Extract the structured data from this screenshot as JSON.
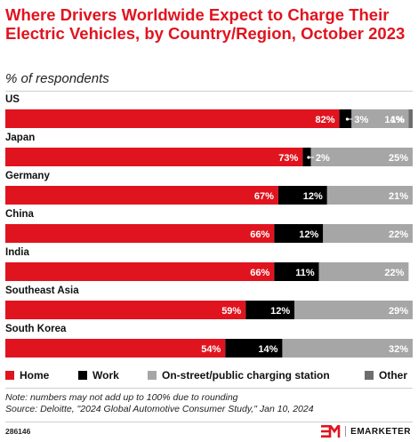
{
  "title": "Where Drivers Worldwide Expect to Charge Their Electric Vehicles, by Country/Region, October 2023",
  "subtitle": "% of respondents",
  "colors": {
    "home": "#e0141f",
    "work": "#000000",
    "public": "#a6a6a6",
    "other": "#6d6d6d",
    "title": "#e0141f"
  },
  "chart_data": {
    "type": "bar",
    "orientation": "horizontal",
    "stacked": true,
    "categories": [
      "US",
      "Japan",
      "Germany",
      "China",
      "India",
      "Southeast Asia",
      "South Korea"
    ],
    "series": [
      {
        "name": "Home",
        "values": [
          82,
          73,
          67,
          66,
          66,
          59,
          54
        ],
        "labels": [
          "82%",
          "73%",
          "67%",
          "66%",
          "66%",
          "59%",
          "54%"
        ]
      },
      {
        "name": "Work",
        "values": [
          3,
          2,
          12,
          12,
          11,
          12,
          14
        ],
        "labels": [
          "3%",
          "",
          "12%",
          "12%",
          "11%",
          "12%",
          "14%"
        ]
      },
      {
        "name": "On-street/public charging station",
        "values": [
          14,
          25,
          21,
          22,
          22,
          29,
          32
        ],
        "labels": [
          "14%",
          "25%",
          "21%",
          "22%",
          "22%",
          "29%",
          "32%"
        ]
      },
      {
        "name": "Other",
        "values": [
          1,
          0,
          0,
          0,
          0,
          0,
          0
        ],
        "labels": [
          "1%",
          "",
          "",
          "",
          "",
          "",
          ""
        ]
      }
    ],
    "callouts": [
      {
        "category": "US",
        "text": "3%"
      },
      {
        "category": "Japan",
        "text": "2%"
      }
    ],
    "xlim": [
      0,
      100
    ],
    "legend_position": "bottom"
  },
  "legend": [
    {
      "label": "Home",
      "color": "#e0141f"
    },
    {
      "label": "Work",
      "color": "#000000"
    },
    {
      "label": "On-street/public charging station",
      "color": "#a6a6a6"
    },
    {
      "label": "Other",
      "color": "#6d6d6d"
    }
  ],
  "note": "Note: numbers may not add up to 100% due to rounding",
  "source": "Source: Deloitte, \"2024 Global Automotive Consumer Study,\" Jan 10, 2024",
  "chart_id": "286146",
  "brand": {
    "mark": "EM",
    "name": "EMARKETER"
  }
}
